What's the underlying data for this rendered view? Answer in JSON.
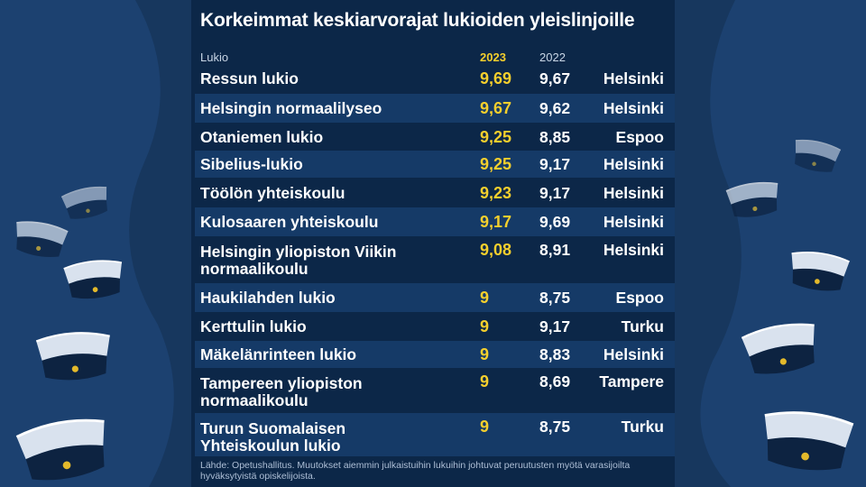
{
  "title": "Korkeimmat keskiarvorajat lukioiden yleislinjoille",
  "headers": {
    "school": "Lukio",
    "y2023": "2023",
    "y2022": "2022"
  },
  "rows": [
    {
      "name": "Ressun lukio",
      "v2023": "9,69",
      "v2022": "9,67",
      "city": "Helsinki"
    },
    {
      "name": "Helsingin normaalilyseo",
      "v2023": "9,67",
      "v2022": "9,62",
      "city": "Helsinki"
    },
    {
      "name": "Otaniemen lukio",
      "v2023": "9,25",
      "v2022": "8,85",
      "city": "Espoo"
    },
    {
      "name": "Sibelius-lukio",
      "v2023": "9,25",
      "v2022": "9,17",
      "city": "Helsinki"
    },
    {
      "name": "Töölön yhteiskoulu",
      "v2023": "9,23",
      "v2022": "9,17",
      "city": "Helsinki"
    },
    {
      "name": "Kulosaaren yhteiskoulu",
      "v2023": "9,17",
      "v2022": "9,69",
      "city": "Helsinki"
    },
    {
      "name": "Helsingin yliopiston Viikin normaalikoulu",
      "v2023": "9,08",
      "v2022": "8,91",
      "city": "Helsinki"
    },
    {
      "name": "Haukilahden lukio",
      "v2023": "9",
      "v2022": "8,75",
      "city": "Espoo"
    },
    {
      "name": "Kerttulin lukio",
      "v2023": "9",
      "v2022": "9,17",
      "city": "Turku"
    },
    {
      "name": "Mäkelänrinteen lukio",
      "v2023": "9",
      "v2022": "8,83",
      "city": "Helsinki"
    },
    {
      "name": "Tampereen yliopiston normaalikoulu",
      "v2023": "9",
      "v2022": "8,69",
      "city": "Tampere"
    },
    {
      "name": "Turun Suomalaisen Yhteiskoulun lukio",
      "v2023": "9",
      "v2022": "8,75",
      "city": "Turku"
    }
  ],
  "source": "Lähde: Opetushallitus. Muutokset aiemmin julkaistuihin lukuihin johtuvat peruutusten myötä varasijoilta hyväksytyistä opiskelijoista.",
  "colors": {
    "background": "#17375e",
    "panel": "#0c2748",
    "stripe": "#153a67",
    "highlight": "#f4cf2d"
  },
  "decoration": "student-cap-icons",
  "chart_data": {
    "type": "table",
    "title": "Korkeimmat keskiarvorajat lukioiden yleislinjoille",
    "columns": [
      "Lukio",
      "2023",
      "2022",
      ""
    ],
    "rows": [
      [
        "Ressun lukio",
        9.69,
        9.67,
        "Helsinki"
      ],
      [
        "Helsingin normaalilyseo",
        9.67,
        9.62,
        "Helsinki"
      ],
      [
        "Otaniemen lukio",
        9.25,
        8.85,
        "Espoo"
      ],
      [
        "Sibelius-lukio",
        9.25,
        9.17,
        "Helsinki"
      ],
      [
        "Töölön yhteiskoulu",
        9.23,
        9.17,
        "Helsinki"
      ],
      [
        "Kulosaaren yhteiskoulu",
        9.17,
        9.69,
        "Helsinki"
      ],
      [
        "Helsingin yliopiston Viikin normaalikoulu",
        9.08,
        8.91,
        "Helsinki"
      ],
      [
        "Haukilahden lukio",
        9,
        8.75,
        "Espoo"
      ],
      [
        "Kerttulin lukio",
        9,
        9.17,
        "Turku"
      ],
      [
        "Mäkelänrinteen lukio",
        9,
        8.83,
        "Helsinki"
      ],
      [
        "Tampereen yliopiston normaalikoulu",
        9,
        8.69,
        "Tampere"
      ],
      [
        "Turun Suomalaisen Yhteiskoulun lukio",
        9,
        8.75,
        "Turku"
      ]
    ]
  }
}
